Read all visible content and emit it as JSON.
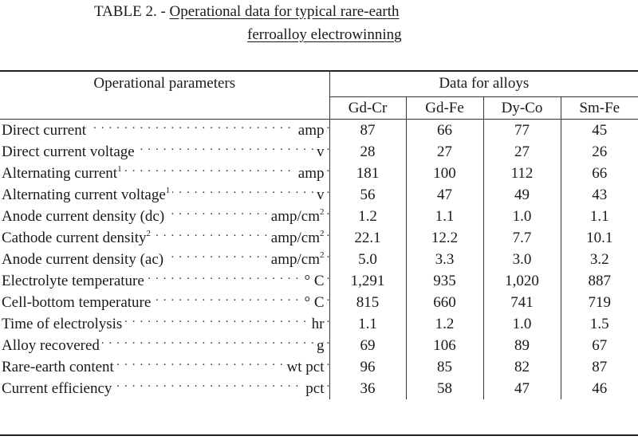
{
  "title": {
    "prefix": "TABLE 2. - ",
    "line1_underlined": "Operational data for typical rare-earth",
    "line2_underlined": "ferroalloy electrowinning"
  },
  "header": {
    "parameters_label": "Operational parameters",
    "data_label": "Data for alloys",
    "alloys": [
      "Gd-Cr",
      "Gd-Fe",
      "Dy-Co",
      "Sm-Fe"
    ]
  },
  "rows": [
    {
      "name": "Direct current",
      "sup_name": "",
      "unit": "amp",
      "sup_unit": "",
      "values": [
        "87",
        "66",
        "77",
        "45"
      ]
    },
    {
      "name": "Direct current voltage",
      "sup_name": "",
      "unit": "v",
      "sup_unit": "",
      "values": [
        "28",
        "27",
        "27",
        "26"
      ]
    },
    {
      "name": "Alternating current",
      "sup_name": "1",
      "unit": "amp",
      "sup_unit": "",
      "values": [
        "181",
        "100",
        "112",
        "66"
      ]
    },
    {
      "name": "Alternating current voltage",
      "sup_name": "1",
      "unit": "v",
      "sup_unit": "",
      "values": [
        "56",
        "47",
        "49",
        "43"
      ]
    },
    {
      "name": "Anode current density (dc)",
      "sup_name": "",
      "unit": "amp/cm",
      "sup_unit": "2",
      "values": [
        "1.2",
        "1.1",
        "1.0",
        "1.1"
      ]
    },
    {
      "name": "Cathode current density",
      "sup_name": "2",
      "unit": "amp/cm",
      "sup_unit": "2",
      "values": [
        "22.1",
        "12.2",
        "7.7",
        "10.1"
      ]
    },
    {
      "name": "Anode current density (ac)",
      "sup_name": "",
      "unit": "amp/cm",
      "sup_unit": "2",
      "values": [
        "5.0",
        "3.3",
        "3.0",
        "3.2"
      ]
    },
    {
      "name": "Electrolyte temperature",
      "sup_name": "",
      "unit": "° C",
      "sup_unit": "",
      "values": [
        "1,291",
        "935",
        "1,020",
        "887"
      ]
    },
    {
      "name": "Cell-bottom temperature",
      "sup_name": "",
      "unit": "° C",
      "sup_unit": "",
      "values": [
        "815",
        "660",
        "741",
        "719"
      ]
    },
    {
      "name": "Time of electrolysis",
      "sup_name": "",
      "unit": "hr",
      "sup_unit": "",
      "values": [
        "1.1",
        "1.2",
        "1.0",
        "1.5"
      ]
    },
    {
      "name": "Alloy recovered",
      "sup_name": "",
      "unit": "g",
      "sup_unit": "",
      "values": [
        "69",
        "106",
        "89",
        "67"
      ]
    },
    {
      "name": "Rare-earth content",
      "sup_name": "",
      "unit": "wt pct",
      "sup_unit": "",
      "values": [
        "96",
        "85",
        "82",
        "87"
      ]
    },
    {
      "name": "Current efficiency",
      "sup_name": "",
      "unit": "pct",
      "sup_unit": "",
      "values": [
        "36",
        "58",
        "47",
        "46"
      ]
    }
  ]
}
